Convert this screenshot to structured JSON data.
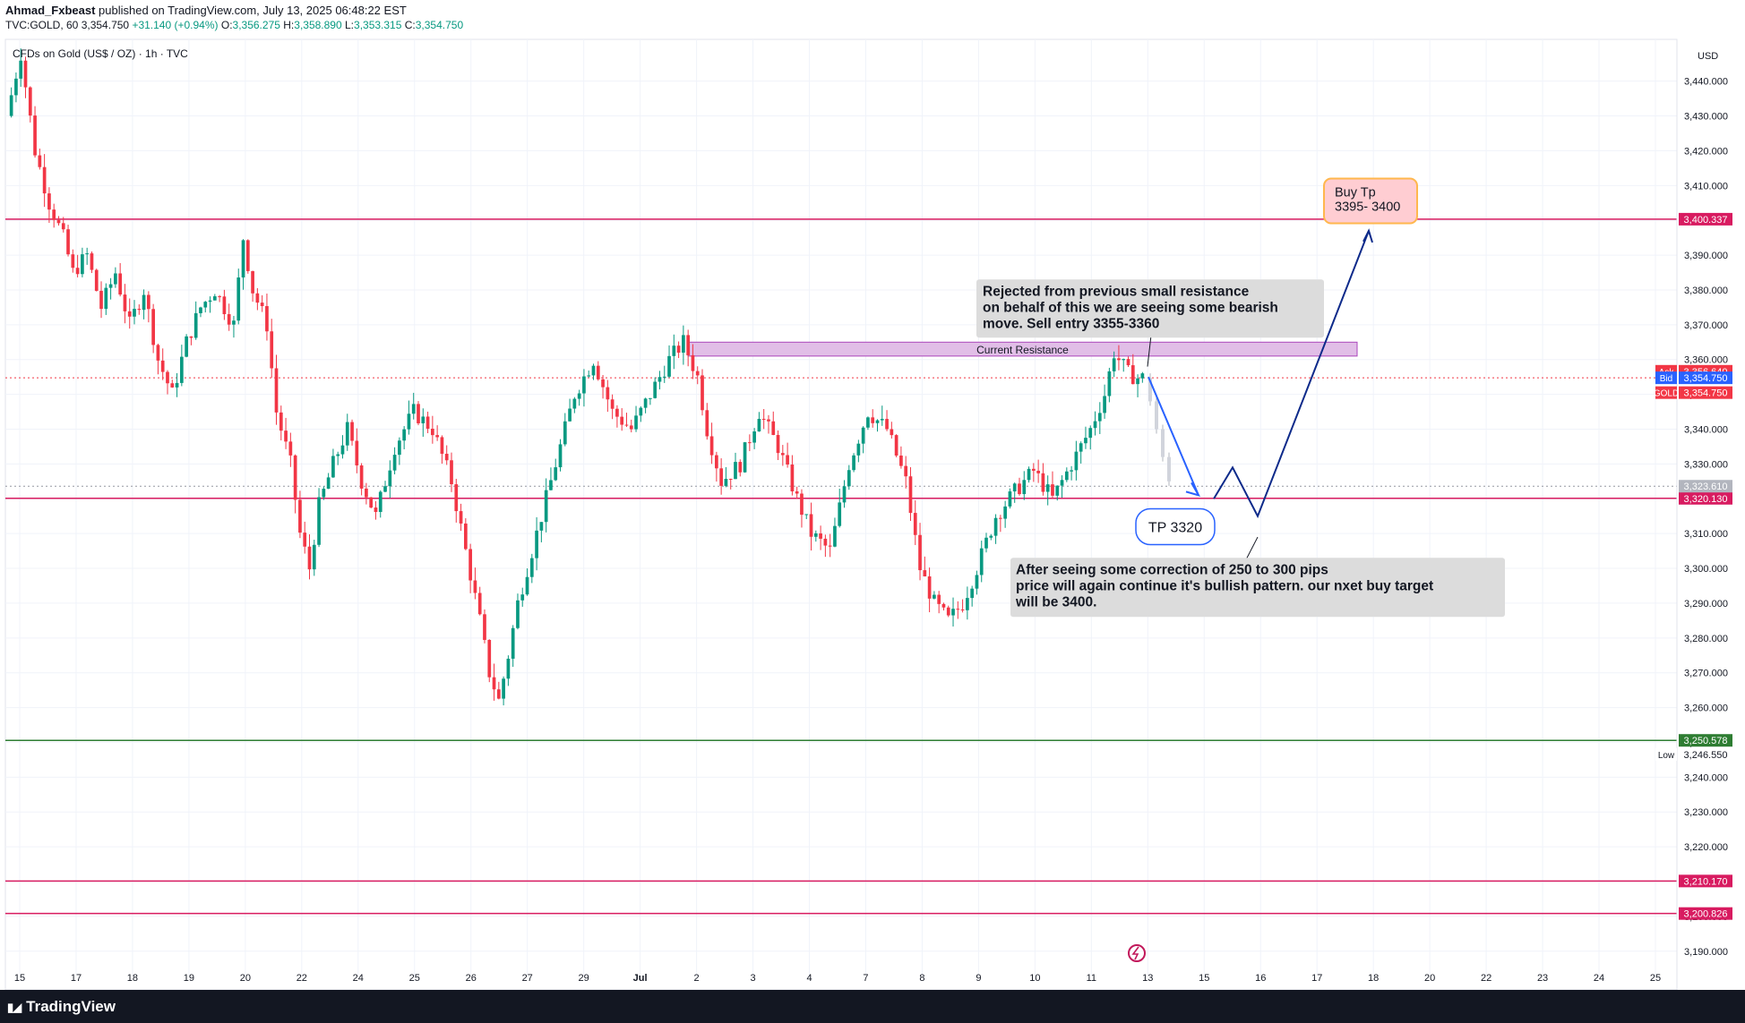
{
  "header": {
    "publisher": "Ahmad_Fxbeast",
    "published_text": "published on TradingView.com, July 13, 2025 06:48:22 EST",
    "symbol_line": "TVC:GOLD, 60",
    "last_price": "3,354.750",
    "change": "+31.140 (+0.94%)",
    "o_label": "O:",
    "o_value": "3,356.275",
    "h_label": "H:",
    "h_value": "3,358.890",
    "l_label": "L:",
    "l_value": "3,353.315",
    "c_label": "C:",
    "c_value": "3,354.750"
  },
  "footer": {
    "brand": "TradingView"
  },
  "colors": {
    "up": "#089981",
    "down": "#f23645",
    "resistance": "#d81b60",
    "support": "#2e7d32",
    "draw_blue": "#2962ff",
    "draw_navy": "#0d2a8a",
    "resistance_zone": "#e1bee7",
    "note_bg": "#dcdcdc",
    "buy_box": "#ffcdd2",
    "buy_border": "#ffb74d",
    "grid": "#f0f3fa"
  },
  "chart_data": {
    "type": "candlestick",
    "title": "CFDs on Gold (US$ / OZ) · 1h · TVC",
    "currency": "USD",
    "ylim": [
      3183,
      3452
    ],
    "y_ticks": [
      3190,
      3200,
      3210,
      3220,
      3230,
      3240,
      3250,
      3260,
      3270,
      3280,
      3290,
      3300,
      3310,
      3320,
      3330,
      3340,
      3350,
      3360,
      3370,
      3380,
      3390,
      3400,
      3410,
      3420,
      3430,
      3440
    ],
    "x_ticks": [
      "15",
      "17",
      "18",
      "19",
      "20",
      "22",
      "24",
      "25",
      "26",
      "27",
      "29",
      "Jul",
      "2",
      "3",
      "4",
      "7",
      "8",
      "9",
      "10",
      "11",
      "13",
      "15",
      "16",
      "17",
      "18",
      "20",
      "22",
      "23",
      "24",
      "25"
    ],
    "x_ticks_bold": [
      "Jul"
    ],
    "price_path": [
      [
        0,
        3430
      ],
      [
        3,
        3448
      ],
      [
        6,
        3420
      ],
      [
        9,
        3405
      ],
      [
        12,
        3395
      ],
      [
        14,
        3385
      ],
      [
        17,
        3390
      ],
      [
        20,
        3375
      ],
      [
        23,
        3385
      ],
      [
        26,
        3370
      ],
      [
        29,
        3380
      ],
      [
        32,
        3360
      ],
      [
        35,
        3350
      ],
      [
        38,
        3365
      ],
      [
        41,
        3375
      ],
      [
        44,
        3380
      ],
      [
        48,
        3370
      ],
      [
        50,
        3395
      ],
      [
        52,
        3380
      ],
      [
        55,
        3370
      ],
      [
        57,
        3345
      ],
      [
        60,
        3330
      ],
      [
        62,
        3310
      ],
      [
        64,
        3300
      ],
      [
        66,
        3318
      ],
      [
        69,
        3330
      ],
      [
        72,
        3340
      ],
      [
        75,
        3325
      ],
      [
        78,
        3315
      ],
      [
        82,
        3335
      ],
      [
        86,
        3345
      ],
      [
        90,
        3340
      ],
      [
        94,
        3325
      ],
      [
        97,
        3305
      ],
      [
        100,
        3285
      ],
      [
        102,
        3270
      ],
      [
        104,
        3262
      ],
      [
        106,
        3275
      ],
      [
        108,
        3290
      ],
      [
        112,
        3310
      ],
      [
        116,
        3330
      ],
      [
        120,
        3350
      ],
      [
        124,
        3360
      ],
      [
        128,
        3345
      ],
      [
        132,
        3340
      ],
      [
        136,
        3350
      ],
      [
        140,
        3360
      ],
      [
        143,
        3365
      ],
      [
        146,
        3355
      ],
      [
        148,
        3340
      ],
      [
        151,
        3325
      ],
      [
        155,
        3330
      ],
      [
        159,
        3345
      ],
      [
        163,
        3335
      ],
      [
        167,
        3320
      ],
      [
        170,
        3310
      ],
      [
        174,
        3305
      ],
      [
        178,
        3330
      ],
      [
        182,
        3345
      ],
      [
        186,
        3340
      ],
      [
        190,
        3325
      ],
      [
        193,
        3300
      ],
      [
        196,
        3290
      ],
      [
        199,
        3285
      ],
      [
        202,
        3290
      ],
      [
        205,
        3300
      ],
      [
        209,
        3315
      ],
      [
        213,
        3322
      ],
      [
        217,
        3328
      ],
      [
        221,
        3320
      ],
      [
        225,
        3330
      ],
      [
        229,
        3340
      ],
      [
        232,
        3350
      ],
      [
        234,
        3362
      ],
      [
        237,
        3356
      ],
      [
        239,
        3354.75
      ]
    ],
    "projection_gray": [
      [
        3354.75,
        3348
      ],
      [
        3348,
        3340
      ],
      [
        3340,
        3332
      ],
      [
        3332,
        3325
      ]
    ],
    "horizontal_levels": [
      {
        "value": 3400.337,
        "label": "3,400.337",
        "color": "#d81b60"
      },
      {
        "value": 3320.13,
        "label": "3,320.130",
        "color": "#d81b60"
      },
      {
        "value": 3250.578,
        "label": "3,250.578",
        "color": "#2e7d32"
      },
      {
        "value": 3210.17,
        "label": "3,210.170",
        "color": "#d81b60"
      },
      {
        "value": 3200.826,
        "label": "3,200.826",
        "color": "#d81b60"
      }
    ],
    "price_tags": [
      {
        "label": "Ask",
        "value": "3,356.640",
        "y": 3356.64,
        "color": "#f23645"
      },
      {
        "label": "Bid",
        "value": "3,354.750",
        "y": 3354.75,
        "color": "#2962ff"
      },
      {
        "label": "GOLD",
        "value": "3,354.750",
        "y": 3350.5,
        "color": "#f23645"
      },
      {
        "label": "",
        "value": "3,323.610",
        "y": 3323.61,
        "color": "#b2b5be"
      },
      {
        "label": "Low",
        "value": "3,246.550",
        "y": 3246.55,
        "color": "#ffffff"
      }
    ],
    "resistance_zone": {
      "label": "Current Resistance",
      "y_low": 3361,
      "y_high": 3365
    },
    "annotations": {
      "sell_note": "Rejected from previous small resistance\non behalf of this we are seeing some bearish\nmove. Sell entry 3355-3360",
      "tp_label": "TP 3320",
      "buy_note": "After seeing some correction of 250 to 300 pips\nprice will again continue it's bullish pattern. our nxet buy target\nwill be 3400.",
      "buy_tp": "Buy Tp\n3395- 3400"
    }
  }
}
